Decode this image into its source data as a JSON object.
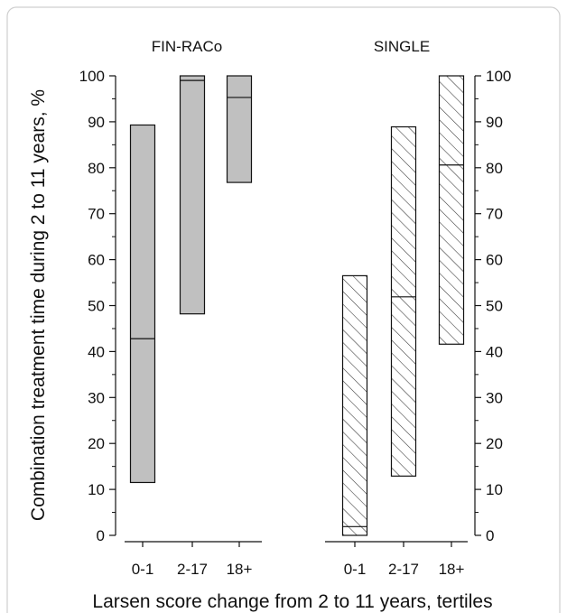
{
  "chart_data": {
    "type": "box",
    "xlabel": "Larsen score change from 2 to 11 years, tertiles",
    "ylabel": "Combination treatment time during 2 to 11 years, %",
    "ylim": [
      0,
      100
    ],
    "yticks": [
      0,
      10,
      20,
      30,
      40,
      50,
      60,
      70,
      80,
      90,
      100
    ],
    "categories": [
      "0-1",
      "2-17",
      "18+"
    ],
    "panels": [
      {
        "title": "FIN-RACo",
        "fill": "solid-gray",
        "color": "#c0c0c0",
        "boxes": [
          {
            "category": "0-1",
            "low": 11.5,
            "median": 42.8,
            "high": 89.3
          },
          {
            "category": "2-17",
            "low": 48.2,
            "median": 99.0,
            "high": 100
          },
          {
            "category": "18+",
            "low": 76.8,
            "median": 95.3,
            "high": 100
          }
        ]
      },
      {
        "title": "SINGLE",
        "fill": "diagonal-hatch",
        "color": "#ffffff",
        "boxes": [
          {
            "category": "0-1",
            "low": 0,
            "median": 1.9,
            "high": 56.5
          },
          {
            "category": "2-17",
            "low": 12.9,
            "median": 51.9,
            "high": 88.9
          },
          {
            "category": "18+",
            "low": 41.6,
            "median": 80.6,
            "high": 100
          }
        ]
      }
    ]
  }
}
